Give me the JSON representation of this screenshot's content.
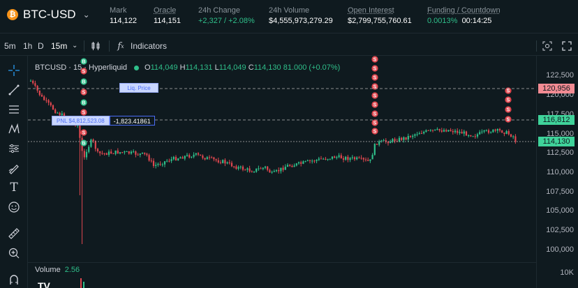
{
  "header": {
    "ticker": "BTC-USD",
    "ticker_icon": "bitcoin-icon",
    "stats": [
      {
        "label": "Mark",
        "value": "114,122",
        "underline": false,
        "green": false
      },
      {
        "label": "Oracle",
        "value": "114,151",
        "underline": true,
        "green": false
      },
      {
        "label": "24h Change",
        "value": "+2,327 / +2.08%",
        "underline": false,
        "green": true
      },
      {
        "label": "24h Volume",
        "value": "$4,555,973,279.29",
        "underline": false,
        "green": false
      },
      {
        "label": "Open Interest",
        "value": "$2,799,755,760.61",
        "underline": true,
        "green": false
      },
      {
        "label": "Funding / Countdown",
        "value_green": "0.0013%",
        "value_white": "00:14:25",
        "underline": true
      }
    ]
  },
  "toolbar": {
    "intervals": [
      "5m",
      "1h",
      "D"
    ],
    "active_interval": "15m",
    "indicators_label": "Indicators"
  },
  "legend": {
    "symbol": "BTCUSD · 15 · Hyperliquid",
    "o_label": "O",
    "o": "114,049",
    "h_label": "H",
    "h": "114,131",
    "l_label": "L",
    "l": "114,049",
    "c_label": "C",
    "c": "114,130",
    "change": "81.000 (+0.07%)"
  },
  "overlays": {
    "liq_label": "Liq. Price",
    "pnl_label": "PNL $4,812,523.08",
    "pnl_value": "-1,823.41861",
    "buy_marker": "B",
    "sell_marker": "S"
  },
  "price_axis": {
    "ticks": [
      "122,500",
      "120,000",
      "117,500",
      "115,000",
      "112,500",
      "110,000",
      "107,500",
      "105,000",
      "102,500",
      "100,000"
    ],
    "tags": [
      {
        "value": "120,956",
        "color": "#f28b93"
      },
      {
        "value": "116,812",
        "color": "#3fd39a"
      },
      {
        "value": "114,130",
        "color": "#3fd39a"
      }
    ],
    "vol_tick": "10K"
  },
  "volume": {
    "label": "Volume",
    "value": "2.56"
  },
  "logo": "TV",
  "colors": {
    "up": "#2fbf8a",
    "down": "#e0474f",
    "bg": "#0f1a1f"
  }
}
